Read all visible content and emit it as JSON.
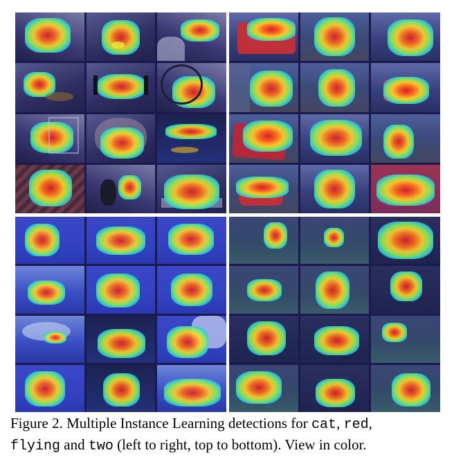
{
  "figure": {
    "panels": [
      {
        "id": "p-cat",
        "word": "cat",
        "rows": 4,
        "cols": 3
      },
      {
        "id": "p-red",
        "word": "red",
        "rows": 4,
        "cols": 3
      },
      {
        "id": "p-flying",
        "word": "flying",
        "rows": 4,
        "cols": 3
      },
      {
        "id": "p-two",
        "word": "two",
        "rows": 4,
        "cols": 3
      }
    ],
    "heatmap_colors": [
      "#d8202a",
      "#ff6a1a",
      "#ffd52b",
      "#8df05a",
      "#2fd0d8",
      "#2846dc"
    ]
  },
  "caption": {
    "prefix": "Figure 2. Multiple Instance Learning detections for ",
    "w1": "cat",
    "sep1": ", ",
    "w2": "red",
    "sep2": ",",
    "w3": "flying",
    "sep3": " and ",
    "w4": "two",
    "suffix": " (left to right, top to bottom). View in color."
  }
}
